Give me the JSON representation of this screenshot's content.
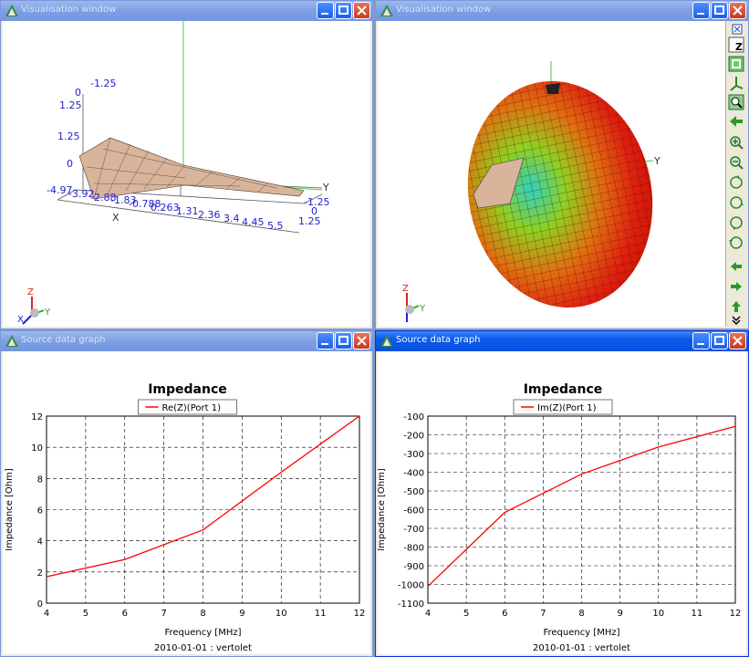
{
  "windows": {
    "vis_left": {
      "title": "Visualisation window"
    },
    "vis_right": {
      "title": "Visualisation window"
    },
    "graph_left": {
      "title": "Source data graph"
    },
    "graph_right": {
      "title": "Source data graph"
    }
  },
  "vis_left": {
    "axis_x": "X",
    "axis_y": "Y",
    "axis_z": "Z",
    "x_ticks": [
      "-4.97",
      "-3.92",
      "-2.88",
      "-1.83",
      "-0.788",
      "0.263",
      "1.31",
      "2.36",
      "3.4",
      "4.45",
      "5.5"
    ],
    "y_ticks": [
      "-1.25",
      "0",
      "1.25"
    ],
    "z_ticks": [
      "-1.25",
      "0",
      "1.25",
      "1.25",
      "0",
      "-1.25"
    ],
    "triad": {
      "x": "X",
      "y": "Y",
      "z": "Z"
    }
  },
  "vis_right": {
    "axis_y": "Y",
    "triad": {
      "y": "Y",
      "z": "Z"
    }
  },
  "chart_data": [
    {
      "type": "line",
      "title": "Impedance",
      "xlabel": "Frequency [MHz]",
      "ylabel": "Impedance [Ohm]",
      "footer": "2010-01-01 : vertolet",
      "xlim": [
        4,
        12
      ],
      "ylim": [
        0,
        12
      ],
      "x_ticks": [
        4,
        5,
        6,
        7,
        8,
        9,
        10,
        11,
        12
      ],
      "y_ticks": [
        0,
        2,
        4,
        6,
        8,
        10,
        12
      ],
      "grid": true,
      "legend_placement": "top-center",
      "series": [
        {
          "name": "Re(Z)(Port 1)",
          "color": "#ff0000",
          "x": [
            4,
            6,
            8,
            10,
            12
          ],
          "y": [
            1.7,
            2.8,
            4.7,
            8.4,
            12.0
          ]
        }
      ]
    },
    {
      "type": "line",
      "title": "Impedance",
      "xlabel": "Frequency [MHz]",
      "ylabel": "Impedance [Ohm]",
      "footer": "2010-01-01 : vertolet",
      "xlim": [
        4,
        12
      ],
      "ylim": [
        -1100,
        -100
      ],
      "x_ticks": [
        4,
        5,
        6,
        7,
        8,
        9,
        10,
        11,
        12
      ],
      "y_ticks": [
        -1100,
        -1000,
        -900,
        -800,
        -700,
        -600,
        -500,
        -400,
        -300,
        -200,
        -100
      ],
      "grid": true,
      "legend_placement": "top-center",
      "series": [
        {
          "name": "Im(Z)(Port 1)",
          "color": "#ff0000",
          "x": [
            4,
            6,
            8,
            10,
            12
          ],
          "y": [
            -1010,
            -615,
            -410,
            -265,
            -155
          ]
        }
      ]
    }
  ]
}
